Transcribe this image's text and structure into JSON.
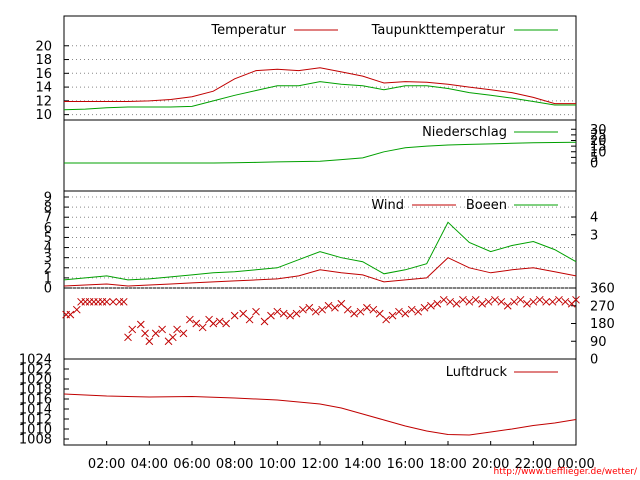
{
  "colors": {
    "red": "#c00000",
    "green": "#00a000",
    "frame": "#000000",
    "grid": "#888888",
    "credit": "#ff0000"
  },
  "x_ticks": [
    "02:00",
    "04:00",
    "06:00",
    "08:00",
    "10:00",
    "12:00",
    "14:00",
    "16:00",
    "18:00",
    "20:00",
    "22:00",
    "00:00"
  ],
  "credit": "http://www.tiefflieger.de/wetter/",
  "chart_data": [
    {
      "id": "temp",
      "type": "line",
      "y_ticks": [
        "10",
        "12",
        "14",
        "16",
        "18",
        "20"
      ],
      "ylim": [
        9.8,
        22
      ],
      "grid": true,
      "x_hours": [
        0,
        1,
        2,
        3,
        4,
        5,
        6,
        7,
        8,
        9,
        10,
        11,
        12,
        13,
        14,
        15,
        16,
        17,
        18,
        19,
        20,
        21,
        22,
        23,
        24
      ],
      "series": [
        {
          "name": "Temperatur",
          "color": "red",
          "values": [
            11.9,
            11.9,
            11.9,
            11.9,
            12.0,
            12.2,
            12.6,
            13.4,
            15.2,
            16.4,
            16.6,
            16.4,
            16.8,
            16.2,
            15.6,
            14.6,
            14.8,
            14.7,
            14.4,
            14.0,
            13.6,
            13.2,
            12.5,
            11.6,
            11.6
          ]
        },
        {
          "name": "Taupunkttemperatur",
          "color": "green",
          "values": [
            10.7,
            10.8,
            11.0,
            11.1,
            11.1,
            11.1,
            11.2,
            12.0,
            12.8,
            13.5,
            14.2,
            14.2,
            14.8,
            14.4,
            14.2,
            13.6,
            14.2,
            14.2,
            13.8,
            13.2,
            12.8,
            12.4,
            11.9,
            11.4,
            11.4
          ]
        }
      ]
    },
    {
      "id": "rain",
      "type": "line",
      "y_ticks": [
        "0",
        "5",
        "10",
        "15",
        "20",
        "25",
        "30"
      ],
      "ylim": [
        0,
        32
      ],
      "grid": false,
      "x_hours": [
        0,
        7,
        8,
        9,
        10,
        12,
        13,
        14,
        15,
        16,
        17,
        18,
        19,
        20,
        21,
        22,
        24
      ],
      "series": [
        {
          "name": "Niederschlag",
          "color": "green",
          "values": [
            0,
            0,
            0.2,
            0.5,
            1.0,
            1.5,
            3.0,
            4.5,
            10.0,
            13.5,
            15.0,
            16.0,
            16.5,
            17.0,
            17.5,
            18.0,
            18.5
          ]
        }
      ]
    },
    {
      "id": "wind",
      "type": "line",
      "y_ticks_left": [
        "0",
        "1",
        "2",
        "3",
        "4",
        "5",
        "6",
        "7",
        "8",
        "9"
      ],
      "y_ticks_right": [
        "3",
        "4"
      ],
      "ylim": [
        0,
        9
      ],
      "grid": true,
      "x_hours": [
        0,
        1,
        2,
        3,
        4,
        5,
        6,
        7,
        8,
        9,
        10,
        11,
        12,
        13,
        14,
        15,
        16,
        17,
        18,
        19,
        20,
        21,
        22,
        23,
        24
      ],
      "series": [
        {
          "name": "Wind",
          "color": "red",
          "values": [
            0.2,
            0.3,
            0.4,
            0.2,
            0.3,
            0.4,
            0.5,
            0.6,
            0.7,
            0.8,
            0.9,
            1.2,
            1.8,
            1.5,
            1.3,
            0.6,
            0.8,
            1.0,
            3.0,
            2.0,
            1.5,
            1.8,
            2.0,
            1.6,
            1.2
          ]
        },
        {
          "name": "Boeen",
          "color": "green",
          "values": [
            0.8,
            1.0,
            1.2,
            0.8,
            0.9,
            1.1,
            1.3,
            1.5,
            1.6,
            1.8,
            2.0,
            2.8,
            3.6,
            3.0,
            2.6,
            1.4,
            1.8,
            2.4,
            6.5,
            4.5,
            3.6,
            4.2,
            4.6,
            3.8,
            2.6
          ]
        }
      ]
    },
    {
      "id": "dir",
      "type": "scatter",
      "y_ticks_right": [
        "0",
        "90",
        "180",
        "270",
        "360"
      ],
      "ylim": [
        0,
        360
      ],
      "grid": false,
      "marker": "x",
      "color": "red",
      "x_hours": [
        0.1,
        0.3,
        0.6,
        0.8,
        1.0,
        1.2,
        1.4,
        1.6,
        1.8,
        2.0,
        2.3,
        2.6,
        2.8,
        3.0,
        3.2,
        3.6,
        3.8,
        4.0,
        4.3,
        4.6,
        4.9,
        5.1,
        5.3,
        5.6,
        5.9,
        6.2,
        6.5,
        6.8,
        7.0,
        7.3,
        7.6,
        8.0,
        8.4,
        8.7,
        9.0,
        9.4,
        9.7,
        10.0,
        10.3,
        10.6,
        10.9,
        11.2,
        11.5,
        11.8,
        12.1,
        12.4,
        12.7,
        13.0,
        13.3,
        13.6,
        13.9,
        14.2,
        14.5,
        14.8,
        15.1,
        15.4,
        15.7,
        16.0,
        16.3,
        16.6,
        16.9,
        17.2,
        17.5,
        17.8,
        18.1,
        18.4,
        18.7,
        19.0,
        19.3,
        19.6,
        19.9,
        20.2,
        20.5,
        20.8,
        21.1,
        21.4,
        21.7,
        22.0,
        22.3,
        22.6,
        22.9,
        23.2,
        23.5,
        23.8,
        24.0
      ],
      "values": [
        225,
        225,
        250,
        290,
        290,
        290,
        290,
        290,
        290,
        290,
        290,
        290,
        290,
        110,
        150,
        175,
        130,
        90,
        130,
        150,
        90,
        110,
        150,
        130,
        200,
        180,
        160,
        200,
        180,
        190,
        180,
        220,
        230,
        200,
        240,
        190,
        220,
        240,
        230,
        220,
        230,
        250,
        260,
        240,
        250,
        270,
        260,
        280,
        250,
        230,
        240,
        260,
        250,
        230,
        200,
        220,
        240,
        230,
        250,
        240,
        260,
        270,
        280,
        300,
        290,
        280,
        300,
        290,
        300,
        280,
        290,
        300,
        290,
        270,
        290,
        300,
        280,
        290,
        300,
        290,
        290,
        300,
        290,
        280,
        300
      ]
    },
    {
      "id": "press",
      "type": "line",
      "y_ticks": [
        "1008",
        "1010",
        "1012",
        "1014",
        "1016",
        "1018",
        "1020",
        "1022",
        "1024"
      ],
      "ylim": [
        1007.6,
        1024
      ],
      "grid": false,
      "x_hours": [
        0,
        2,
        4,
        6,
        8,
        10,
        11,
        12,
        13,
        14,
        15,
        16,
        17,
        18,
        19,
        20,
        21,
        22,
        23,
        24
      ],
      "series": [
        {
          "name": "Luftdruck",
          "color": "red",
          "values": [
            1017.0,
            1016.6,
            1016.4,
            1016.5,
            1016.2,
            1015.8,
            1015.4,
            1015.0,
            1014.2,
            1013.0,
            1011.8,
            1010.6,
            1009.6,
            1008.9,
            1008.8,
            1009.4,
            1010.0,
            1010.7,
            1011.2,
            1011.9
          ]
        }
      ]
    }
  ]
}
